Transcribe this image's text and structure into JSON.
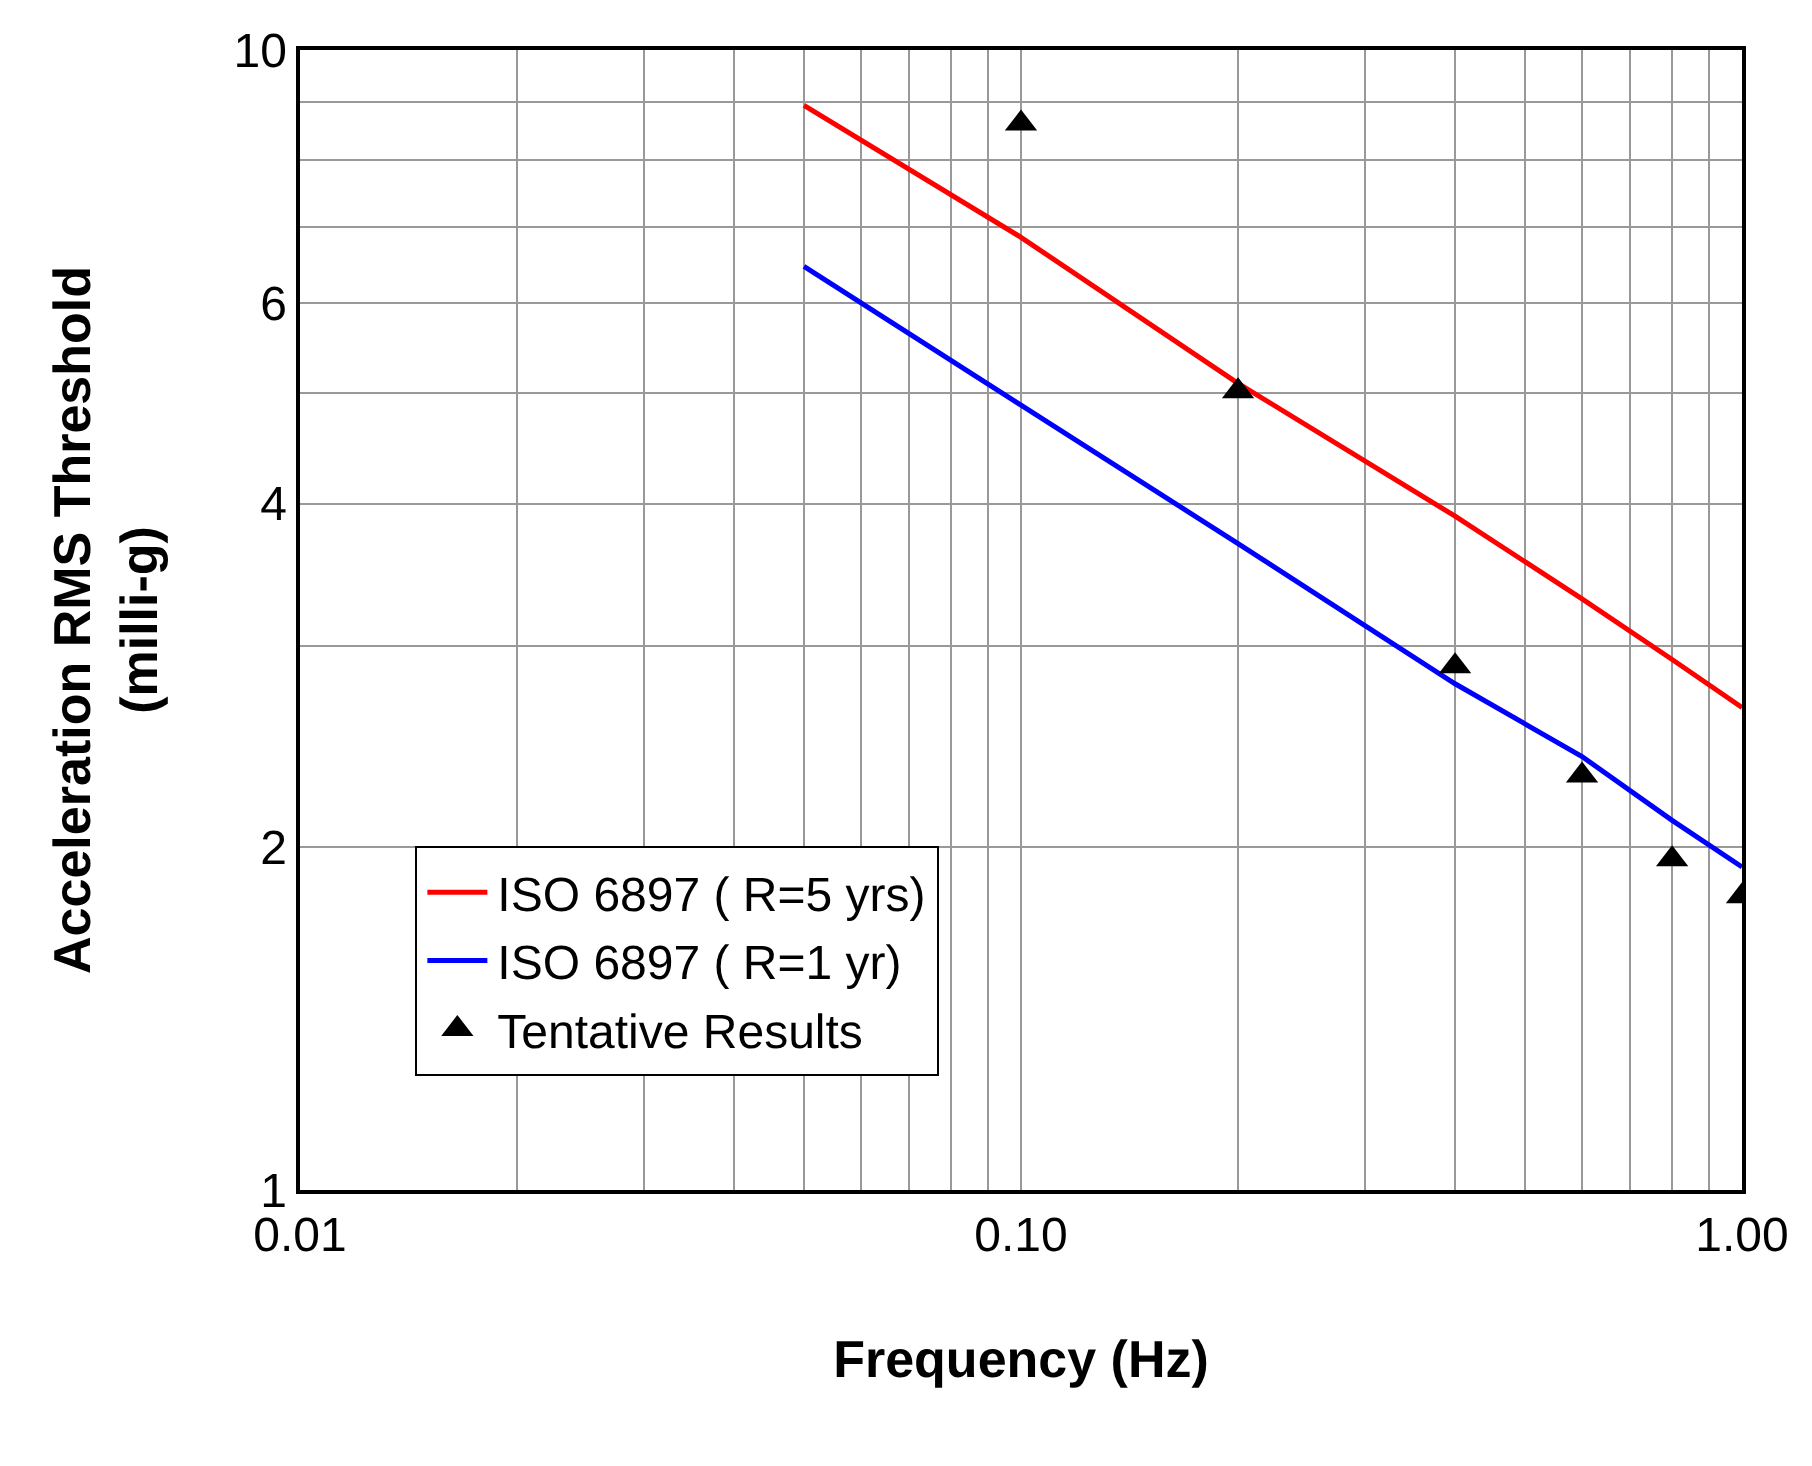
{
  "chart_data": {
    "type": "line",
    "xlabel": "Frequency (Hz)",
    "ylabel": "Acceleration RMS Threshold\n(milli-g)",
    "log": "xy",
    "grid": true,
    "legend": "bottom left",
    "xlim": [
      0.01,
      1
    ],
    "ylim": [
      1,
      10
    ],
    "xticks": [
      {
        "value": 0.01,
        "label": "0.01"
      },
      {
        "value": 0.02,
        "label": null
      },
      {
        "value": 0.03,
        "label": null
      },
      {
        "value": 0.04,
        "label": null
      },
      {
        "value": 0.05,
        "label": null
      },
      {
        "value": 0.06,
        "label": null
      },
      {
        "value": 0.07,
        "label": null
      },
      {
        "value": 0.08,
        "label": null
      },
      {
        "value": 0.09,
        "label": null
      },
      {
        "value": 0.1,
        "label": "0.10"
      },
      {
        "value": 0.2,
        "label": null
      },
      {
        "value": 0.3,
        "label": null
      },
      {
        "value": 0.4,
        "label": null
      },
      {
        "value": 0.5,
        "label": null
      },
      {
        "value": 0.6,
        "label": null
      },
      {
        "value": 0.7,
        "label": null
      },
      {
        "value": 0.8,
        "label": null
      },
      {
        "value": 0.9,
        "label": null
      },
      {
        "value": 1,
        "label": "1.00"
      }
    ],
    "yticks": [
      1,
      2,
      {
        "value": 3,
        "label": null
      },
      4,
      {
        "value": 5,
        "label": null
      },
      6,
      {
        "value": 7,
        "label": null
      },
      {
        "value": 8,
        "label": null
      },
      {
        "value": 9,
        "label": null
      },
      10
    ],
    "series": [
      {
        "name": "ISO 6897 ( R=5 yrs)",
        "marker": "none",
        "color": "#ff0000",
        "x": [
          0.05,
          0.1,
          0.2,
          0.4,
          0.6,
          0.8,
          1.0
        ],
        "values": [
          8.94,
          6.85,
          5.1,
          3.9,
          3.3,
          2.92,
          2.65
        ]
      },
      {
        "name": "ISO 6897 ( R=1 yr)",
        "marker": "none",
        "color": "#0000ff",
        "x": [
          0.05,
          0.1,
          0.2,
          0.4,
          0.6,
          0.8,
          1.0
        ],
        "values": [
          6.46,
          4.88,
          3.69,
          2.78,
          2.4,
          2.11,
          1.92
        ]
      },
      {
        "name": "Tentative Results",
        "type": "scatter",
        "marker": "triangle",
        "color": "#000000",
        "x": [
          0.1,
          0.2,
          0.4,
          0.6,
          0.8,
          1.0
        ],
        "values": [
          8.62,
          5.02,
          2.88,
          2.31,
          1.95,
          1.81
        ]
      }
    ]
  }
}
